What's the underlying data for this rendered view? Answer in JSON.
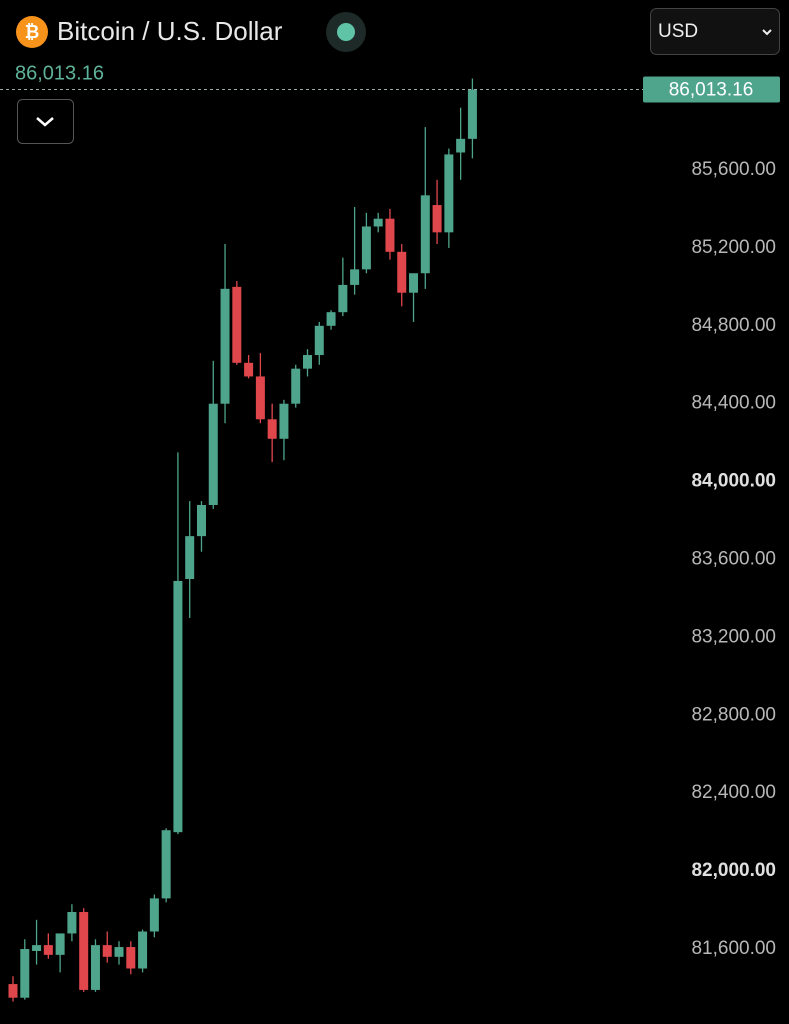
{
  "chart_data": {
    "type": "candlestick",
    "title": "Bitcoin / U.S. Dollar",
    "symbol_icon": "₿",
    "currency": "USD",
    "last_price": {
      "value": 86013.16,
      "label": "86,013.16"
    },
    "up_color": "#4fa58c",
    "down_color": "#e0474c",
    "ylim": [
      81215,
      86473
    ],
    "yticks": [
      {
        "value": 81600,
        "label": "81,600.00"
      },
      {
        "value": 82000,
        "label": "82,000.00"
      },
      {
        "value": 82400,
        "label": "82,400.00"
      },
      {
        "value": 82800,
        "label": "82,800.00"
      },
      {
        "value": 83200,
        "label": "83,200.00"
      },
      {
        "value": 83600,
        "label": "83,600.00"
      },
      {
        "value": 84000,
        "label": "84,000.00"
      },
      {
        "value": 84400,
        "label": "84,400.00"
      },
      {
        "value": 84800,
        "label": "84,800.00"
      },
      {
        "value": 85200,
        "label": "85,200.00"
      },
      {
        "value": 85600,
        "label": "85,600.00"
      }
    ],
    "grid": false,
    "open": [
      81420,
      81350,
      81590,
      81620,
      81570,
      81680,
      81790,
      81390,
      81620,
      81560,
      81610,
      81500,
      81690,
      81860,
      82200,
      83500,
      83720,
      83880,
      84400,
      85000,
      84610,
      84540,
      84320,
      84220,
      84400,
      84580,
      84650,
      84800,
      84870,
      85010,
      85090,
      85310,
      85350,
      85180,
      84970,
      85070,
      85420,
      85280,
      85690,
      85760
    ],
    "high": [
      81460,
      81650,
      81750,
      81680,
      81680,
      81830,
      81810,
      81650,
      81690,
      81640,
      81640,
      81700,
      81880,
      82220,
      84150,
      83900,
      83900,
      84620,
      85220,
      85030,
      84650,
      84660,
      84400,
      84420,
      84600,
      84680,
      84820,
      84880,
      85150,
      85410,
      85380,
      85380,
      85400,
      85220,
      85060,
      85820,
      85550,
      85710,
      85920,
      86070
    ],
    "low": [
      81330,
      81340,
      81520,
      81550,
      81480,
      81640,
      81380,
      81380,
      81530,
      81520,
      81470,
      81480,
      81660,
      81840,
      82190,
      83300,
      83640,
      83860,
      84300,
      84600,
      84530,
      84300,
      84100,
      84110,
      84380,
      84540,
      84600,
      84780,
      84850,
      84960,
      85070,
      85280,
      85140,
      84900,
      84820,
      84990,
      85220,
      85200,
      85550,
      85660
    ],
    "close": [
      81350,
      81600,
      81620,
      81570,
      81680,
      81790,
      81390,
      81620,
      81560,
      81610,
      81500,
      81690,
      81860,
      82210,
      83490,
      83720,
      83880,
      84400,
      84990,
      84610,
      84540,
      84320,
      84220,
      84400,
      84580,
      84650,
      84800,
      84870,
      85010,
      85090,
      85310,
      85350,
      85180,
      84970,
      85070,
      85470,
      85280,
      85680,
      85760,
      86013.16
    ]
  }
}
